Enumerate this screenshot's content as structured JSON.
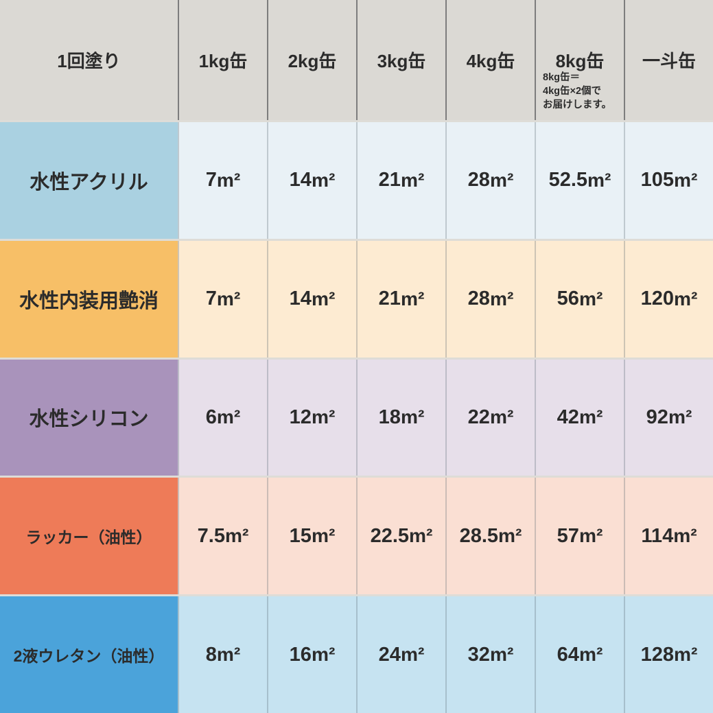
{
  "table": {
    "unit": "m²",
    "header": {
      "corner": "1回塗り",
      "columns": [
        "1kg缶",
        "2kg缶",
        "3kg缶",
        "4kg缶",
        "8kg缶",
        "一斗缶"
      ],
      "note_lines": [
        "8kg缶＝",
        "4kg缶×2個で",
        "お届けします。"
      ]
    },
    "rows": [
      {
        "label": "水性アクリル",
        "values": [
          "7",
          "14",
          "21",
          "28",
          "52.5",
          "105"
        ]
      },
      {
        "label": "水性内装用艶消",
        "values": [
          "7",
          "14",
          "21",
          "28",
          "56",
          "120"
        ]
      },
      {
        "label": "水性シリコン",
        "values": [
          "6",
          "12",
          "18",
          "22",
          "42",
          "92"
        ]
      },
      {
        "label": "ラッカー（油性）",
        "values": [
          "7.5",
          "15",
          "22.5",
          "28.5",
          "57",
          "114"
        ]
      },
      {
        "label": "2液ウレタン（油性）",
        "values": [
          "8",
          "16",
          "24",
          "32",
          "64",
          "128"
        ]
      }
    ],
    "colors": {
      "header_bg": "#dbd9d4",
      "header_grid_line": "#7d7d7d",
      "row_separator": "#dedcd7",
      "text": "#2b2b2b",
      "row_label_bg": [
        "#aad1e1",
        "#f7bf67",
        "#a993bb",
        "#ee7b58",
        "#4ba3da"
      ],
      "row_cell_bg": [
        "#e9f1f6",
        "#fdebd2",
        "#e7dfea",
        "#fadfd3",
        "#c6e3f1"
      ]
    }
  },
  "chart_data": {
    "type": "table",
    "title": "1回塗り",
    "columns": [
      "1kg缶",
      "2kg缶",
      "3kg缶",
      "4kg缶",
      "8kg缶",
      "一斗缶"
    ],
    "unit": "m²",
    "note": "8kg缶＝4kg缶×2個でお届けします。",
    "rows": [
      {
        "label": "水性アクリル",
        "values_m2": [
          7,
          14,
          21,
          28,
          52.5,
          105
        ]
      },
      {
        "label": "水性内装用艶消",
        "values_m2": [
          7,
          14,
          21,
          28,
          56,
          120
        ]
      },
      {
        "label": "水性シリコン",
        "values_m2": [
          6,
          12,
          18,
          22,
          42,
          92
        ]
      },
      {
        "label": "ラッカー（油性）",
        "values_m2": [
          7.5,
          15,
          22.5,
          28.5,
          57,
          114
        ]
      },
      {
        "label": "2液ウレタン（油性）",
        "values_m2": [
          8,
          16,
          24,
          32,
          64,
          128
        ]
      }
    ]
  }
}
